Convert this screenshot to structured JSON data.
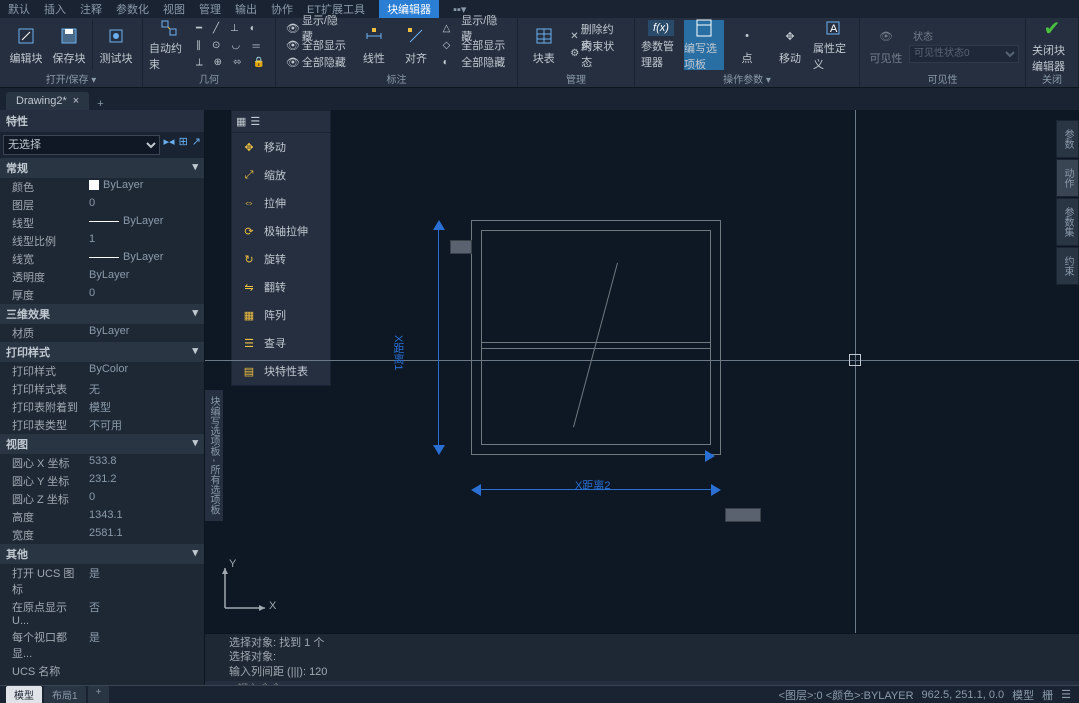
{
  "menu": {
    "items": [
      "默认",
      "插入",
      "注释",
      "参数化",
      "视图",
      "管理",
      "输出",
      "协作",
      "ET扩展工具"
    ],
    "active": "块编辑器"
  },
  "ribbon": {
    "groups": {
      "open": {
        "label": "打开/保存 ▾",
        "btn1": "编辑块",
        "btn2": "保存块",
        "btn3": "测试块"
      },
      "geom": {
        "label": "几何",
        "auto": "自动约束"
      },
      "annot": {
        "label": "标注",
        "line": "线性",
        "align": "对齐",
        "items": [
          "显示/隐藏",
          "全部显示",
          "全部隐藏"
        ]
      },
      "manage": {
        "label": "管理",
        "del": "删除约束",
        "param": "约束状态",
        "bdel": "块表"
      },
      "actions": {
        "label": "操作参数 ▾",
        "a1": "参数管理器",
        "a2": "编写选项板",
        "a3": "点",
        "a4": "移动",
        "a5": "属性定义"
      },
      "vis": {
        "label": "可见性",
        "s1": "可见性",
        "s2": "状态",
        "select_value": "可见性状态0"
      },
      "close": {
        "label": "关闭",
        "b1": "关闭块编辑器"
      }
    }
  },
  "doctab": {
    "name": "Drawing2*"
  },
  "props": {
    "title": "特性",
    "selector": "无选择",
    "sections": {
      "general": {
        "title": "常规",
        "rows": [
          {
            "k": "颜色",
            "v": "ByLayer",
            "swatch": true
          },
          {
            "k": "图层",
            "v": "0"
          },
          {
            "k": "线型",
            "v": "ByLayer",
            "line": true
          },
          {
            "k": "线型比例",
            "v": "1"
          },
          {
            "k": "线宽",
            "v": "ByLayer",
            "line": true
          },
          {
            "k": "透明度",
            "v": "ByLayer"
          },
          {
            "k": "厚度",
            "v": "0"
          }
        ]
      },
      "threed": {
        "title": "三维效果",
        "rows": [
          {
            "k": "材质",
            "v": "ByLayer"
          }
        ]
      },
      "plot": {
        "title": "打印样式",
        "rows": [
          {
            "k": "打印样式",
            "v": "ByColor"
          },
          {
            "k": "打印样式表",
            "v": "无"
          },
          {
            "k": "打印表附着到",
            "v": "模型"
          },
          {
            "k": "打印表类型",
            "v": "不可用"
          }
        ]
      },
      "view": {
        "title": "视图",
        "rows": [
          {
            "k": "圆心 X 坐标",
            "v": "533.8"
          },
          {
            "k": "圆心 Y 坐标",
            "v": "231.2"
          },
          {
            "k": "圆心 Z 坐标",
            "v": "0"
          },
          {
            "k": "高度",
            "v": "1343.1"
          },
          {
            "k": "宽度",
            "v": "2581.1"
          }
        ]
      },
      "misc": {
        "title": "其他",
        "rows": [
          {
            "k": "打开 UCS 图标",
            "v": "是"
          },
          {
            "k": "在原点显示 U...",
            "v": "否"
          },
          {
            "k": "每个视口都显...",
            "v": "是"
          },
          {
            "k": "UCS 名称",
            "v": ""
          }
        ]
      }
    }
  },
  "palette": {
    "side_label_l": "块编写选项板 - 所有选项板",
    "side_tabs_r": [
      "参数",
      "动作",
      "参数集",
      "约束"
    ],
    "items": [
      {
        "label": "移动",
        "icon": "move"
      },
      {
        "label": "缩放",
        "icon": "scale"
      },
      {
        "label": "拉伸",
        "icon": "stretch"
      },
      {
        "label": "极轴拉伸",
        "icon": "polar"
      },
      {
        "label": "旋转",
        "icon": "rotate"
      },
      {
        "label": "翻转",
        "icon": "flip"
      },
      {
        "label": "阵列",
        "icon": "array"
      },
      {
        "label": "查寻",
        "icon": "lookup"
      },
      {
        "label": "块特性表",
        "icon": "table"
      }
    ]
  },
  "dims": {
    "v": "X距离1",
    "h": "X距离2"
  },
  "ucs": {
    "x": "X",
    "y": "Y"
  },
  "cmd": {
    "h1": "选择对象: 找到 1 个",
    "h2": "选择对象:",
    "h3": "输入列间距 (|||): 120",
    "placeholder": "键入命令"
  },
  "layout": {
    "t1": "模型",
    "t2": "布局1",
    "plus": "+"
  },
  "status": {
    "layer": "<图层>:0  <颜色>:BYLAYER",
    "coords": "962.5, 251.1, 0.0",
    "mode": "模型",
    "grid": "栅"
  },
  "colors": {
    "accent": "#2a7fd4",
    "arrow": "#2a6fd4",
    "bg": "#0d1824",
    "panel": "#1e2835",
    "panel2": "#252f3f",
    "border": "#1a2332",
    "text": "#c0c8d0",
    "text_dim": "#8a9aaa",
    "line": "#707880"
  }
}
